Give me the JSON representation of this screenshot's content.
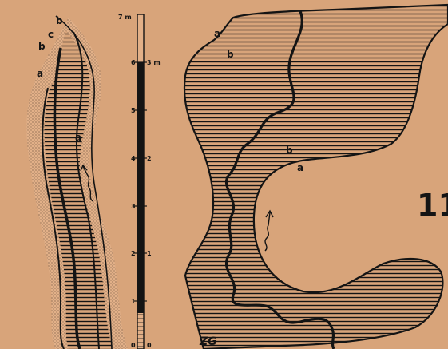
{
  "scale": {
    "top_label": "7 m",
    "left_ticks": [
      "0",
      "1",
      "2",
      "3",
      "4",
      "5",
      "6"
    ],
    "right_ticks": [
      "0",
      "1",
      "2",
      "3 m"
    ]
  },
  "left_figure": {
    "labels": [
      "a",
      "b",
      "c",
      "b",
      "a"
    ]
  },
  "right_figure": {
    "labels": [
      "a",
      "b",
      "b",
      "a"
    ]
  },
  "plate_number": "11",
  "signature": "ZG"
}
